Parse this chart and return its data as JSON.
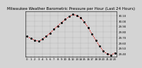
{
  "title": "Milwaukee Weather Barometric Pressure per Hour (Last 24 Hours)",
  "background_color": "#d4d4d4",
  "plot_bg_color": "#d4d4d4",
  "grid_color": "#888888",
  "line_color": "#dd0000",
  "marker_color": "#000000",
  "hours": [
    0,
    1,
    2,
    3,
    4,
    5,
    6,
    7,
    8,
    9,
    10,
    11,
    12,
    13,
    14,
    15,
    16,
    17,
    18,
    19,
    20,
    21,
    22,
    23
  ],
  "pressure": [
    29.72,
    29.68,
    29.65,
    29.63,
    29.67,
    29.72,
    29.78,
    29.85,
    29.91,
    29.97,
    30.03,
    30.08,
    30.12,
    30.1,
    30.06,
    29.98,
    29.88,
    29.76,
    29.65,
    29.54,
    29.45,
    29.4,
    29.38,
    29.42
  ],
  "ylim_min": 29.35,
  "ylim_max": 30.18,
  "xlim_min": -0.5,
  "xlim_max": 23.5,
  "ytick_values": [
    29.4,
    29.5,
    29.6,
    29.7,
    29.8,
    29.9,
    30.0,
    30.1
  ],
  "xtick_values": [
    0,
    1,
    2,
    3,
    4,
    5,
    6,
    7,
    8,
    9,
    10,
    11,
    12,
    13,
    14,
    15,
    16,
    17,
    18,
    19,
    20,
    21,
    22,
    23
  ],
  "grid_xtick_values": [
    0,
    2,
    4,
    6,
    8,
    10,
    12,
    14,
    16,
    18,
    20,
    22
  ],
  "title_fontsize": 4.0,
  "tick_fontsize": 2.8
}
